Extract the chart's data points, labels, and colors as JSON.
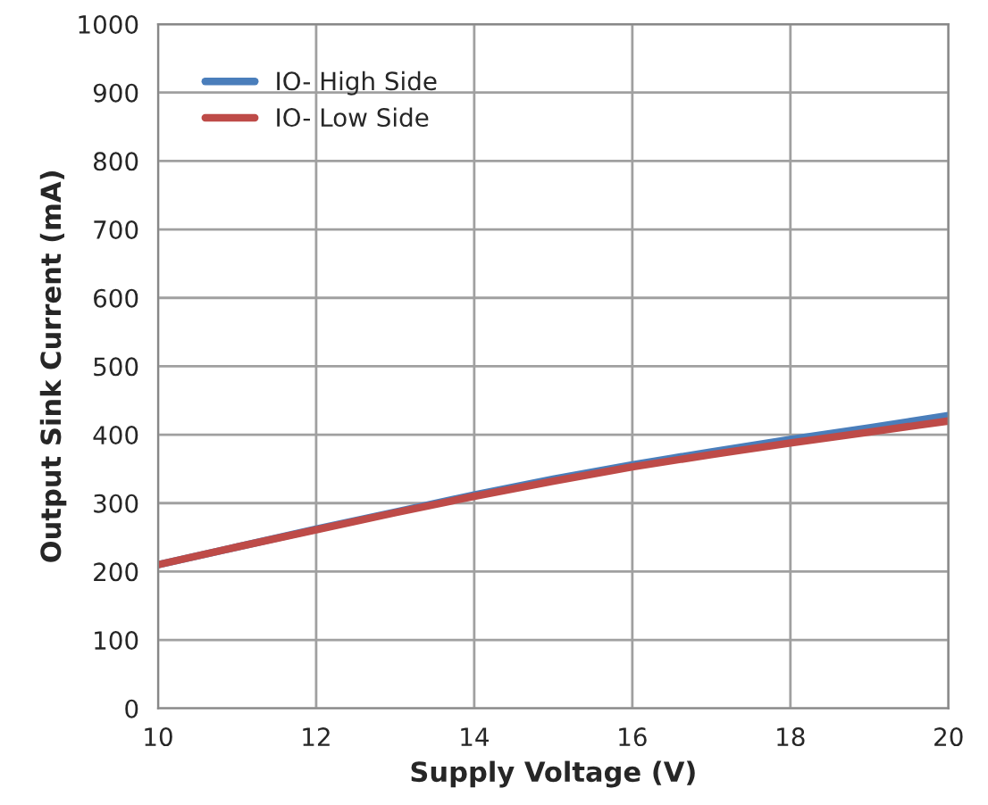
{
  "chart_data": {
    "type": "line",
    "xlabel": "Supply Voltage (V)",
    "ylabel": "Output Sink Current (mA)",
    "x": [
      10,
      11,
      12,
      13,
      14,
      15,
      16,
      17,
      18,
      19,
      20
    ],
    "series": [
      {
        "name": "IO- High Side",
        "color": "#4a7ebb",
        "values": [
          210,
          236,
          262,
          287,
          312,
          335,
          356,
          375,
          393,
          410,
          428
        ]
      },
      {
        "name": "IO- Low Side",
        "color": "#be4b48",
        "values": [
          210,
          236,
          261,
          286,
          310,
          332,
          353,
          371,
          388,
          404,
          420
        ]
      }
    ],
    "xlim": [
      10,
      20
    ],
    "xticks": [
      10,
      12,
      14,
      16,
      18,
      20
    ],
    "ylim": [
      0,
      1000
    ],
    "yticks": [
      0,
      100,
      200,
      300,
      400,
      500,
      600,
      700,
      800,
      900,
      1000
    ],
    "grid": true,
    "legend": "top left",
    "marker": "none",
    "line_style": "solid"
  }
}
